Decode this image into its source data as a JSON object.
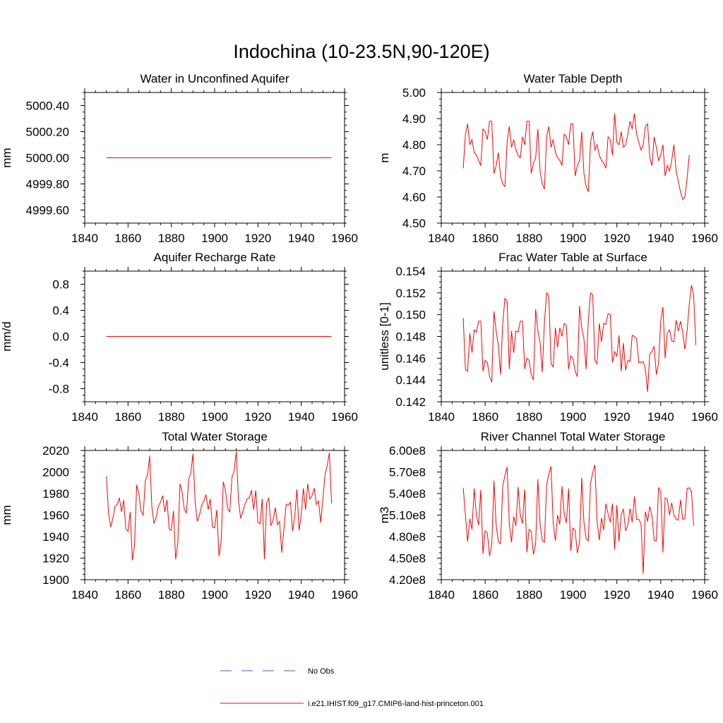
{
  "figure": {
    "title": "Indochina (10-23.5N,90-120E)",
    "legend": [
      {
        "label": "No Obs",
        "color": "#4a5fd0",
        "style": "dashed"
      },
      {
        "label": "i.e21.IHIST.f09_g17.CMIP6-land-hist-princeton.001",
        "color": "#ff0000",
        "style": "solid"
      }
    ]
  },
  "chart_data": [
    {
      "type": "line",
      "title": "Water in Unconfined Aquifer",
      "ylabel": "mm",
      "xlim": [
        1840,
        1960
      ],
      "ylim": [
        4999.5,
        5000.5
      ],
      "xticks": [
        1840,
        1860,
        1880,
        1900,
        1920,
        1940,
        1960
      ],
      "yticks": [
        4999.6,
        4999.8,
        5000.0,
        5000.2,
        5000.4
      ],
      "ytick_labels": [
        "4999.60",
        "4999.80",
        "5000.00",
        "5000.20",
        "5000.40"
      ],
      "x_start": 1850,
      "x_step": 1,
      "series": [
        {
          "name": "i.e21.IHIST.f09_g17.CMIP6-land-hist-princeton.001",
          "color": "#ff0000",
          "values": [
            5000,
            5000,
            5000,
            5000,
            5000,
            5000,
            5000,
            5000,
            5000,
            5000,
            5000,
            5000,
            5000,
            5000,
            5000,
            5000,
            5000,
            5000,
            5000,
            5000,
            5000,
            5000,
            5000,
            5000,
            5000,
            5000,
            5000,
            5000,
            5000,
            5000,
            5000,
            5000,
            5000,
            5000,
            5000,
            5000,
            5000,
            5000,
            5000,
            5000,
            5000,
            5000,
            5000,
            5000,
            5000,
            5000,
            5000,
            5000,
            5000,
            5000,
            5000,
            5000,
            5000,
            5000,
            5000,
            5000,
            5000,
            5000,
            5000,
            5000,
            5000,
            5000,
            5000,
            5000,
            5000,
            5000,
            5000,
            5000,
            5000,
            5000,
            5000,
            5000,
            5000,
            5000,
            5000,
            5000,
            5000,
            5000,
            5000,
            5000,
            5000,
            5000,
            5000,
            5000,
            5000,
            5000,
            5000,
            5000,
            5000,
            5000,
            5000,
            5000,
            5000,
            5000,
            5000,
            5000,
            5000,
            5000,
            5000,
            5000,
            5000,
            5000,
            5000,
            5000,
            5000
          ]
        }
      ]
    },
    {
      "type": "line",
      "title": "Water Table Depth",
      "ylabel": "m",
      "xlim": [
        1840,
        1960
      ],
      "ylim": [
        4.5,
        5.0
      ],
      "xticks": [
        1840,
        1860,
        1880,
        1900,
        1920,
        1940,
        1960
      ],
      "yticks": [
        4.5,
        4.6,
        4.7,
        4.8,
        4.9,
        5.0
      ],
      "ytick_labels": [
        "4.50",
        "4.60",
        "4.70",
        "4.80",
        "4.90",
        "5.00"
      ],
      "x_start": 1850,
      "x_step": 1,
      "series": [
        {
          "name": "i.e21.IHIST.f09_g17.CMIP6-land-hist-princeton.001",
          "color": "#ff0000",
          "values": [
            4.71,
            4.84,
            4.88,
            4.8,
            4.82,
            4.77,
            4.76,
            4.74,
            4.72,
            4.86,
            4.85,
            4.82,
            4.89,
            4.89,
            4.69,
            4.72,
            4.77,
            4.68,
            4.65,
            4.64,
            4.81,
            4.87,
            4.79,
            4.82,
            4.78,
            4.76,
            4.75,
            4.83,
            4.8,
            4.89,
            4.89,
            4.69,
            4.73,
            4.75,
            4.86,
            4.7,
            4.65,
            4.63,
            4.83,
            4.87,
            4.79,
            4.82,
            4.77,
            4.75,
            4.74,
            4.72,
            4.84,
            4.83,
            4.8,
            4.88,
            4.88,
            4.68,
            4.72,
            4.74,
            4.85,
            4.69,
            4.64,
            4.62,
            4.81,
            4.85,
            4.78,
            4.8,
            4.76,
            4.74,
            4.73,
            4.71,
            4.83,
            4.82,
            4.76,
            4.92,
            4.81,
            4.8,
            4.85,
            4.79,
            4.8,
            4.84,
            4.89,
            4.86,
            4.92,
            4.84,
            4.81,
            4.78,
            4.8,
            4.87,
            4.88,
            4.75,
            4.72,
            4.83,
            4.79,
            4.74,
            4.76,
            4.8,
            4.68,
            4.72,
            4.7,
            4.74,
            4.8,
            4.7,
            4.66,
            4.62,
            4.59,
            4.6,
            4.67,
            4.76
          ]
        }
      ]
    },
    {
      "type": "line",
      "title": "Aquifer Recharge Rate",
      "ylabel": "mm/d",
      "xlim": [
        1840,
        1960
      ],
      "ylim": [
        -1.0,
        1.0
      ],
      "xticks": [
        1840,
        1860,
        1880,
        1900,
        1920,
        1940,
        1960
      ],
      "yticks": [
        -0.8,
        -0.4,
        0.0,
        0.4,
        0.8
      ],
      "ytick_labels": [
        "-0.8",
        "-0.4",
        "0.0",
        "0.4",
        "0.8"
      ],
      "x_start": 1850,
      "x_step": 1,
      "series": [
        {
          "name": "i.e21.IHIST.f09_g17.CMIP6-land-hist-princeton.001",
          "color": "#ff0000",
          "values": [
            0,
            0,
            0,
            0,
            0,
            0,
            0,
            0,
            0,
            0,
            0,
            0,
            0,
            0,
            0,
            0,
            0,
            0,
            0,
            0,
            0,
            0,
            0,
            0,
            0,
            0,
            0,
            0,
            0,
            0,
            0,
            0,
            0,
            0,
            0,
            0,
            0,
            0,
            0,
            0,
            0,
            0,
            0,
            0,
            0,
            0,
            0,
            0,
            0,
            0,
            0,
            0,
            0,
            0,
            0,
            0,
            0,
            0,
            0,
            0,
            0,
            0,
            0,
            0,
            0,
            0,
            0,
            0,
            0,
            0,
            0,
            0,
            0,
            0,
            0,
            0,
            0,
            0,
            0,
            0,
            0,
            0,
            0,
            0,
            0,
            0,
            0,
            0,
            0,
            0,
            0,
            0,
            0,
            0,
            0,
            0,
            0,
            0,
            0,
            0,
            0,
            0,
            0,
            0,
            0
          ]
        }
      ]
    },
    {
      "type": "line",
      "title": "Frac Water Table at Surface",
      "ylabel": "unitless [0-1]",
      "xlim": [
        1840,
        1960
      ],
      "ylim": [
        0.142,
        0.154
      ],
      "xticks": [
        1840,
        1860,
        1880,
        1900,
        1920,
        1940,
        1960
      ],
      "yticks": [
        0.142,
        0.144,
        0.146,
        0.148,
        0.15,
        0.152,
        0.154
      ],
      "ytick_labels": [
        "0.142",
        "0.144",
        "0.146",
        "0.148",
        "0.150",
        "0.152",
        "0.154"
      ],
      "x_start": 1850,
      "x_step": 1,
      "series": [
        {
          "name": "i.e21.IHIST.f09_g17.CMIP6-land-hist-princeton.001",
          "color": "#ff0000",
          "values": [
            0.1497,
            0.145,
            0.1448,
            0.1483,
            0.1465,
            0.1486,
            0.1484,
            0.1494,
            0.1494,
            0.1448,
            0.1458,
            0.1456,
            0.1443,
            0.1438,
            0.1503,
            0.1485,
            0.1472,
            0.1445,
            0.1492,
            0.1515,
            0.1512,
            0.145,
            0.1485,
            0.1465,
            0.1485,
            0.1484,
            0.1494,
            0.1494,
            0.145,
            0.146,
            0.1458,
            0.1445,
            0.144,
            0.1505,
            0.1485,
            0.1475,
            0.1447,
            0.1493,
            0.152,
            0.1517,
            0.1455,
            0.1452,
            0.1488,
            0.147,
            0.1488,
            0.148,
            0.1492,
            0.149,
            0.145,
            0.1462,
            0.146,
            0.1448,
            0.1443,
            0.1508,
            0.1488,
            0.1478,
            0.145,
            0.1495,
            0.152,
            0.1518,
            0.1458,
            0.1455,
            0.1492,
            0.1475,
            0.1492,
            0.1491,
            0.1501,
            0.15,
            0.1456,
            0.1466,
            0.1462,
            0.1481,
            0.1448,
            0.1474,
            0.1449,
            0.1458,
            0.1457,
            0.1481,
            0.148,
            0.1478,
            0.1456,
            0.1456,
            0.1457,
            0.145,
            0.1429,
            0.1464,
            0.1466,
            0.1471,
            0.1445,
            0.1455,
            0.1494,
            0.1507,
            0.146,
            0.1483,
            0.1486,
            0.1476,
            0.1475,
            0.1495,
            0.1485,
            0.1494,
            0.1484,
            0.1468,
            0.1485,
            0.151,
            0.1527,
            0.1518,
            0.1472
          ]
        }
      ]
    },
    {
      "type": "line",
      "title": "Total Water Storage",
      "ylabel": "mm",
      "xlim": [
        1840,
        1960
      ],
      "ylim": [
        1900,
        2020
      ],
      "xticks": [
        1840,
        1860,
        1880,
        1900,
        1920,
        1940,
        1960
      ],
      "yticks": [
        1900,
        1920,
        1940,
        1960,
        1980,
        2000,
        2020
      ],
      "ytick_labels": [
        "1900",
        "1920",
        "1940",
        "1960",
        "1980",
        "2000",
        "2020"
      ],
      "x_start": 1850,
      "x_step": 1,
      "series": [
        {
          "name": "i.e21.IHIST.f09_g17.CMIP6-land-hist-princeton.001",
          "color": "#ff0000",
          "values": [
            1996,
            1962,
            1949,
            1957,
            1968,
            1970,
            1976,
            1963,
            1974,
            1947,
            1945,
            1963,
            1918,
            1932,
            1988,
            1980,
            1964,
            1960,
            1992,
            1997,
            2015,
            1968,
            1952,
            1958,
            1968,
            1972,
            1978,
            1963,
            1974,
            1947,
            1946,
            1964,
            1919,
            1934,
            1989,
            1981,
            1965,
            1962,
            1993,
            1999,
            2017,
            1972,
            1954,
            1960,
            1969,
            1973,
            1979,
            1965,
            1975,
            1949,
            1948,
            1965,
            1922,
            1935,
            1991,
            1983,
            1966,
            1963,
            1995,
            2001,
            2019,
            1974,
            1957,
            1963,
            1970,
            1975,
            1976,
            1983,
            1965,
            1983,
            1953,
            1952,
            1975,
            1919,
            1971,
            1976,
            1950,
            1955,
            1967,
            1951,
            1954,
            1925,
            1947,
            1970,
            1969,
            1972,
            1945,
            1959,
            1984,
            1946,
            1960,
            1985,
            1965,
            1989,
            1975,
            1978,
            1985,
            1970,
            1973,
            1953,
            1975,
            1998,
            2006,
            2018,
            1971
          ]
        }
      ]
    },
    {
      "type": "line",
      "title": "River Channel Total Water Storage",
      "ylabel": "m3",
      "xlim": [
        1840,
        1960
      ],
      "ylim": [
        420000000.0,
        600000000.0
      ],
      "xticks": [
        1840,
        1860,
        1880,
        1900,
        1920,
        1940,
        1960
      ],
      "yticks": [
        420000000.0,
        450000000.0,
        480000000.0,
        510000000.0,
        540000000.0,
        570000000.0,
        600000000.0
      ],
      "ytick_labels": [
        "4.20e8",
        "4.50e8",
        "4.80e8",
        "5.10e8",
        "5.40e8",
        "5.70e8",
        "6.00e8"
      ],
      "x_start": 1850,
      "x_step": 1,
      "series": [
        {
          "name": "i.e21.IHIST.f09_g17.CMIP6-land-hist-princeton.001",
          "color": "#ff0000",
          "values": [
            548000000.0,
            510000000.0,
            473000000.0,
            505000000.0,
            490000000.0,
            547000000.0,
            510000000.0,
            496000000.0,
            545000000.0,
            456000000.0,
            488000000.0,
            485000000.0,
            453000000.0,
            468000000.0,
            558000000.0,
            496000000.0,
            473000000.0,
            470000000.0,
            550000000.0,
            565000000.0,
            577000000.0,
            497000000.0,
            472000000.0,
            508000000.0,
            495000000.0,
            549000000.0,
            510000000.0,
            498000000.0,
            546000000.0,
            458000000.0,
            490000000.0,
            487000000.0,
            455000000.0,
            470000000.0,
            560000000.0,
            498000000.0,
            475000000.0,
            472000000.0,
            552000000.0,
            567000000.0,
            578000000.0,
            499000000.0,
            474000000.0,
            510000000.0,
            497000000.0,
            550000000.0,
            512000000.0,
            499000000.0,
            547000000.0,
            460000000.0,
            492000000.0,
            489000000.0,
            457000000.0,
            472000000.0,
            562000000.0,
            500000000.0,
            477000000.0,
            474000000.0,
            554000000.0,
            569000000.0,
            580000000.0,
            501000000.0,
            475000000.0,
            506000000.0,
            489000000.0,
            526000000.0,
            512000000.0,
            500000000.0,
            526000000.0,
            462000000.0,
            524000000.0,
            473000000.0,
            511000000.0,
            518000000.0,
            488000000.0,
            496000000.0,
            519000000.0,
            500000000.0,
            536000000.0,
            504000000.0,
            504000000.0,
            498000000.0,
            428000000.0,
            515000000.0,
            501000000.0,
            522000000.0,
            509000000.0,
            475000000.0,
            474000000.0,
            548000000.0,
            543000000.0,
            458000000.0,
            534000000.0,
            532000000.0,
            510000000.0,
            527000000.0,
            510000000.0,
            504000000.0,
            503000000.0,
            531000000.0,
            504000000.0,
            505000000.0,
            547000000.0,
            548000000.0,
            543000000.0,
            495000000.0
          ]
        }
      ]
    }
  ]
}
